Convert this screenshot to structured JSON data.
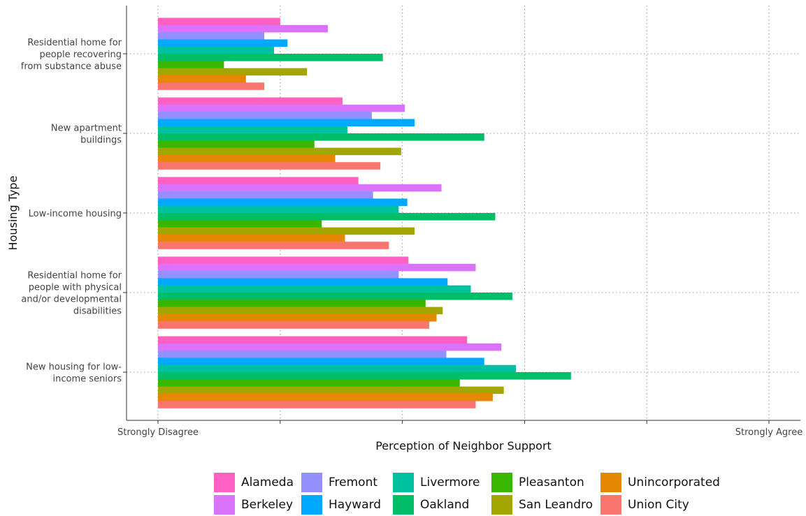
{
  "chart_data": {
    "type": "bar",
    "orientation": "horizontal",
    "title": "",
    "xlabel": "Perception of Neighbor Support",
    "ylabel": "Housing Type",
    "xlim": [
      0,
      5
    ],
    "x_tick_labels": [
      "Strongly Disagree",
      "",
      "",
      "",
      "",
      "Strongly Agree"
    ],
    "grid": true,
    "legend_position": "bottom",
    "categories": [
      [
        "Residential home for",
        "people recovering",
        "from substance abuse"
      ],
      [
        "New apartment",
        "buildings"
      ],
      [
        "Low-income housing"
      ],
      [
        "Residential home for",
        "people with physical",
        "and/or developmental",
        "disabilities"
      ],
      [
        "New housing for low-",
        "income seniors"
      ]
    ],
    "series": [
      {
        "name": "Alameda",
        "color": "#FF61C3",
        "values": [
          1.0,
          1.51,
          1.64,
          2.05,
          2.53
        ]
      },
      {
        "name": "Berkeley",
        "color": "#DB72FB",
        "values": [
          1.39,
          2.02,
          2.32,
          2.6,
          2.81
        ]
      },
      {
        "name": "Fremont",
        "color": "#9590FF",
        "values": [
          0.87,
          1.75,
          1.76,
          1.97,
          2.36
        ]
      },
      {
        "name": "Hayward",
        "color": "#00A9FF",
        "values": [
          1.06,
          2.1,
          2.04,
          2.37,
          2.67
        ]
      },
      {
        "name": "Livermore",
        "color": "#00C19F",
        "values": [
          0.95,
          1.55,
          1.97,
          2.56,
          2.93
        ]
      },
      {
        "name": "Oakland",
        "color": "#00BE67",
        "values": [
          1.84,
          2.67,
          2.76,
          2.9,
          3.38
        ]
      },
      {
        "name": "Pleasanton",
        "color": "#39B600",
        "values": [
          0.54,
          1.28,
          1.34,
          2.19,
          2.47
        ]
      },
      {
        "name": "San Leandro",
        "color": "#A3A500",
        "values": [
          1.22,
          1.99,
          2.1,
          2.33,
          2.83
        ]
      },
      {
        "name": "Unincorporated",
        "color": "#E58700",
        "values": [
          0.72,
          1.45,
          1.53,
          2.28,
          2.74
        ]
      },
      {
        "name": "Union City",
        "color": "#F8766D",
        "values": [
          0.87,
          1.82,
          1.89,
          2.22,
          2.6
        ]
      }
    ]
  },
  "legend": {
    "items": [
      {
        "label": "Alameda",
        "color": "#FF61C3"
      },
      {
        "label": "Fremont",
        "color": "#9590FF"
      },
      {
        "label": "Livermore",
        "color": "#00C19F"
      },
      {
        "label": "Pleasanton",
        "color": "#39B600"
      },
      {
        "label": "Unincorporated",
        "color": "#E58700"
      },
      {
        "label": "Berkeley",
        "color": "#DB72FB"
      },
      {
        "label": "Hayward",
        "color": "#00A9FF"
      },
      {
        "label": "Oakland",
        "color": "#00BE67"
      },
      {
        "label": "San Leandro",
        "color": "#A3A500"
      },
      {
        "label": "Union City",
        "color": "#F8766D"
      }
    ]
  }
}
